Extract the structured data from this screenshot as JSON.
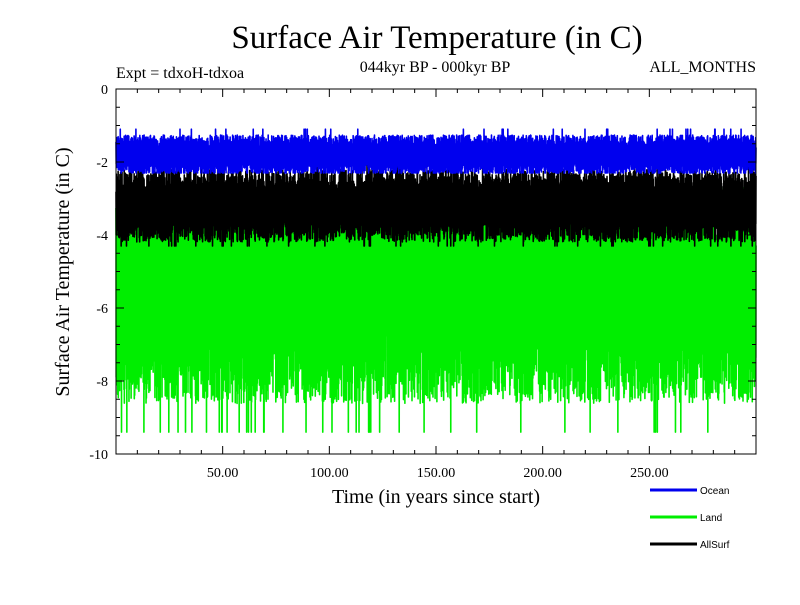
{
  "chart_data": {
    "type": "line",
    "title": "Surface Air Temperature (in C)",
    "subtitle": "044kyr BP - 000kyr BP",
    "experiment_label": "Expt = tdxoH-tdxoa",
    "months_label": "ALL_MONTHS",
    "xlabel": "Time (in years since start)",
    "ylabel": "Surface Air Temperature (in C)",
    "xlim": [
      0,
      300
    ],
    "ylim": [
      -10,
      0
    ],
    "x_ticks": [
      50,
      100,
      150,
      200,
      250
    ],
    "x_tick_labels": [
      "50.00",
      "100.00",
      "150.00",
      "200.00",
      "250.00"
    ],
    "y_ticks": [
      0,
      -2,
      -4,
      -6,
      -8,
      -10
    ],
    "y_tick_labels": [
      "0",
      "-2",
      "-4",
      "-6",
      "-8",
      "-10"
    ],
    "grid": false,
    "legend_position": "bottom-right",
    "series": [
      {
        "name": "Land",
        "color": "#00ee00",
        "approx_mean": -5.6,
        "approx_range": [
          -9.4,
          -2.7
        ]
      },
      {
        "name": "AllSurf",
        "color": "#000000",
        "approx_mean": -3.2,
        "approx_range": [
          -4.3,
          -2.1
        ]
      },
      {
        "name": "Ocean",
        "color": "#0000ee",
        "approx_mean": -1.8,
        "approx_range": [
          -2.3,
          -1.1
        ]
      }
    ],
    "legend": [
      {
        "name": "Ocean",
        "color": "#0000ee"
      },
      {
        "name": "Land",
        "color": "#00ee00"
      },
      {
        "name": "AllSurf",
        "color": "#000000"
      }
    ]
  }
}
